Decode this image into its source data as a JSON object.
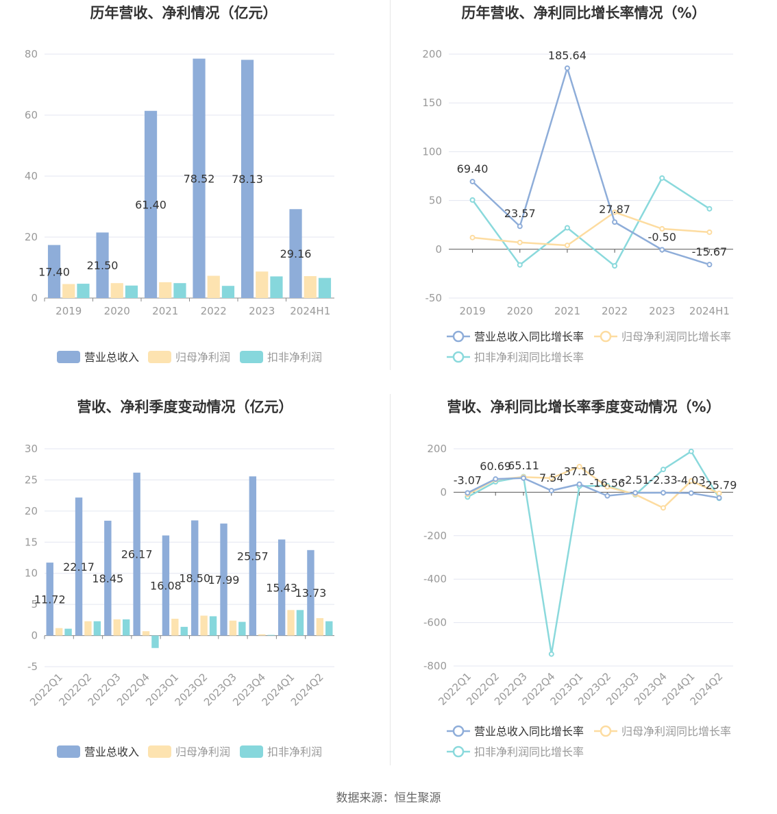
{
  "colors": {
    "revenue": "#8eadd9",
    "parent_profit": "#fde3b0",
    "deducted_profit": "#86d7dc",
    "revenue_line": "#8eadd9",
    "parent_line": "#fddca0",
    "deducted_line": "#8ad9dc",
    "grid": "#e3e6f0",
    "axis_text": "#999999",
    "title": "#333333",
    "label": "#333333"
  },
  "source": "数据来源：恒生聚源",
  "chart_data": [
    {
      "id": "annual_values",
      "type": "bar",
      "title": "历年营收、净利情况（亿元）",
      "categories": [
        "2019",
        "2020",
        "2021",
        "2022",
        "2023",
        "2024H1"
      ],
      "series": [
        {
          "name": "营业总收入",
          "values": [
            17.4,
            21.5,
            61.4,
            78.52,
            78.13,
            29.16
          ],
          "labels": [
            "17.40",
            "21.50",
            "61.40",
            "78.52",
            "78.13",
            "29.16"
          ]
        },
        {
          "name": "归母净利润",
          "values": [
            4.6,
            4.9,
            5.2,
            7.3,
            8.7,
            7.2
          ]
        },
        {
          "name": "扣非净利润",
          "values": [
            4.7,
            4.1,
            4.9,
            4.0,
            7.1,
            6.6
          ]
        }
      ],
      "ylim": [
        0,
        80
      ],
      "yticks": [
        0,
        20,
        40,
        60,
        80
      ],
      "grid": true,
      "legend": "bottom"
    },
    {
      "id": "annual_growth",
      "type": "line",
      "title": "历年营收、净利同比增长率情况（%）",
      "categories": [
        "2019",
        "2020",
        "2021",
        "2022",
        "2023",
        "2024H1"
      ],
      "series": [
        {
          "name": "营业总收入同比增长率",
          "values": [
            69.4,
            23.57,
            185.64,
            27.87,
            -0.5,
            -15.67
          ],
          "labels": [
            "69.40",
            "23.57",
            "185.64",
            "27.87",
            "-0.50",
            "-15.67"
          ]
        },
        {
          "name": "归母净利润同比增长率",
          "values": [
            12,
            7,
            4,
            38,
            21,
            17.5
          ]
        },
        {
          "name": "扣非净利润同比增长率",
          "values": [
            50.5,
            -16,
            22,
            -17,
            73,
            41.5
          ]
        }
      ],
      "ylim": [
        -50,
        200
      ],
      "yticks": [
        -50,
        0,
        50,
        100,
        150,
        200
      ],
      "grid": true,
      "legend": "bottom"
    },
    {
      "id": "quarterly_values",
      "type": "bar",
      "title": "营收、净利季度变动情况（亿元）",
      "categories": [
        "2022Q1",
        "2022Q2",
        "2022Q3",
        "2022Q4",
        "2023Q1",
        "2023Q2",
        "2023Q3",
        "2023Q4",
        "2024Q1",
        "2024Q2"
      ],
      "series": [
        {
          "name": "营业总收入",
          "values": [
            11.72,
            22.17,
            18.45,
            26.17,
            16.08,
            18.5,
            17.99,
            25.57,
            15.43,
            13.73
          ],
          "labels": [
            "11.72",
            "22.17",
            "18.45",
            "26.17",
            "16.08",
            "18.50",
            "17.99",
            "25.57",
            "15.43",
            "13.73"
          ]
        },
        {
          "name": "归母净利润",
          "values": [
            1.2,
            2.3,
            2.6,
            0.7,
            2.7,
            3.2,
            2.4,
            0.2,
            4.1,
            2.8
          ]
        },
        {
          "name": "扣非净利润",
          "values": [
            1.1,
            2.3,
            2.6,
            -2.0,
            1.4,
            3.1,
            2.2,
            0.1,
            4.1,
            2.3
          ]
        }
      ],
      "ylim": [
        -5,
        30
      ],
      "yticks": [
        -5,
        0,
        5,
        10,
        15,
        20,
        25,
        30
      ],
      "grid": true,
      "legend": "bottom"
    },
    {
      "id": "quarterly_growth",
      "type": "line",
      "title": "营收、净利同比增长率季度变动情况（%）",
      "categories": [
        "2022Q1",
        "2022Q2",
        "2022Q3",
        "2022Q4",
        "2023Q1",
        "2023Q2",
        "2023Q3",
        "2023Q4",
        "2024Q1",
        "2024Q2"
      ],
      "series": [
        {
          "name": "营业总收入同比增长率",
          "values": [
            -3.07,
            60.69,
            65.11,
            7.54,
            37.16,
            -16.56,
            -2.51,
            -2.33,
            -4.03,
            -25.79
          ],
          "labels": [
            "-3.07",
            "60.69",
            "65.11",
            "7.54",
            "37.16",
            "-16.56",
            "-2.51",
            "-2.33",
            "-4.03",
            "-25.79"
          ]
        },
        {
          "name": "归母净利润同比增长率",
          "values": [
            -10,
            58,
            70,
            65,
            118,
            25,
            -10,
            -72,
            52,
            -5
          ]
        },
        {
          "name": "扣非净利润同比增长率",
          "values": [
            -22,
            48,
            72,
            -745,
            28,
            30,
            -12,
            105,
            188,
            -28
          ]
        }
      ],
      "ylim": [
        -800,
        200
      ],
      "yticks": [
        -800,
        -600,
        -400,
        -200,
        0,
        200
      ],
      "grid": true,
      "legend": "bottom"
    }
  ]
}
